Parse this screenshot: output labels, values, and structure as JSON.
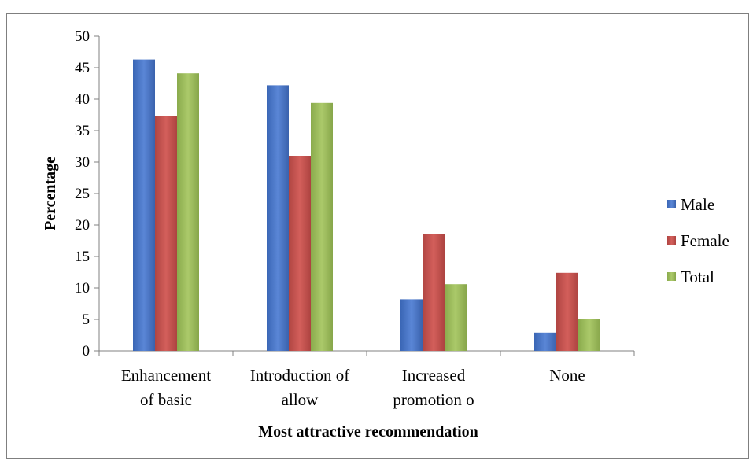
{
  "chart_data": {
    "type": "bar",
    "title": "",
    "xlabel": "Most attractive recommendation",
    "ylabel": "Percentage",
    "ylim": [
      0,
      50
    ],
    "yticks": [
      0,
      5,
      10,
      15,
      20,
      25,
      30,
      35,
      40,
      45,
      50
    ],
    "categories": [
      [
        "Enhancement",
        "of basic"
      ],
      [
        "Introduction of",
        "allow"
      ],
      [
        "Increased",
        "promotion o"
      ],
      [
        "None"
      ]
    ],
    "series": [
      {
        "name": "Male",
        "color": "#4472c4",
        "values": [
          46.3,
          42.2,
          8.2,
          2.9
        ]
      },
      {
        "name": "Female",
        "color": "#c0504d",
        "values": [
          37.3,
          31.0,
          18.5,
          12.4
        ]
      },
      {
        "name": "Total",
        "color": "#9bbb59",
        "values": [
          44.1,
          39.4,
          10.6,
          5.1
        ]
      }
    ],
    "grid": false,
    "legend": "right"
  }
}
